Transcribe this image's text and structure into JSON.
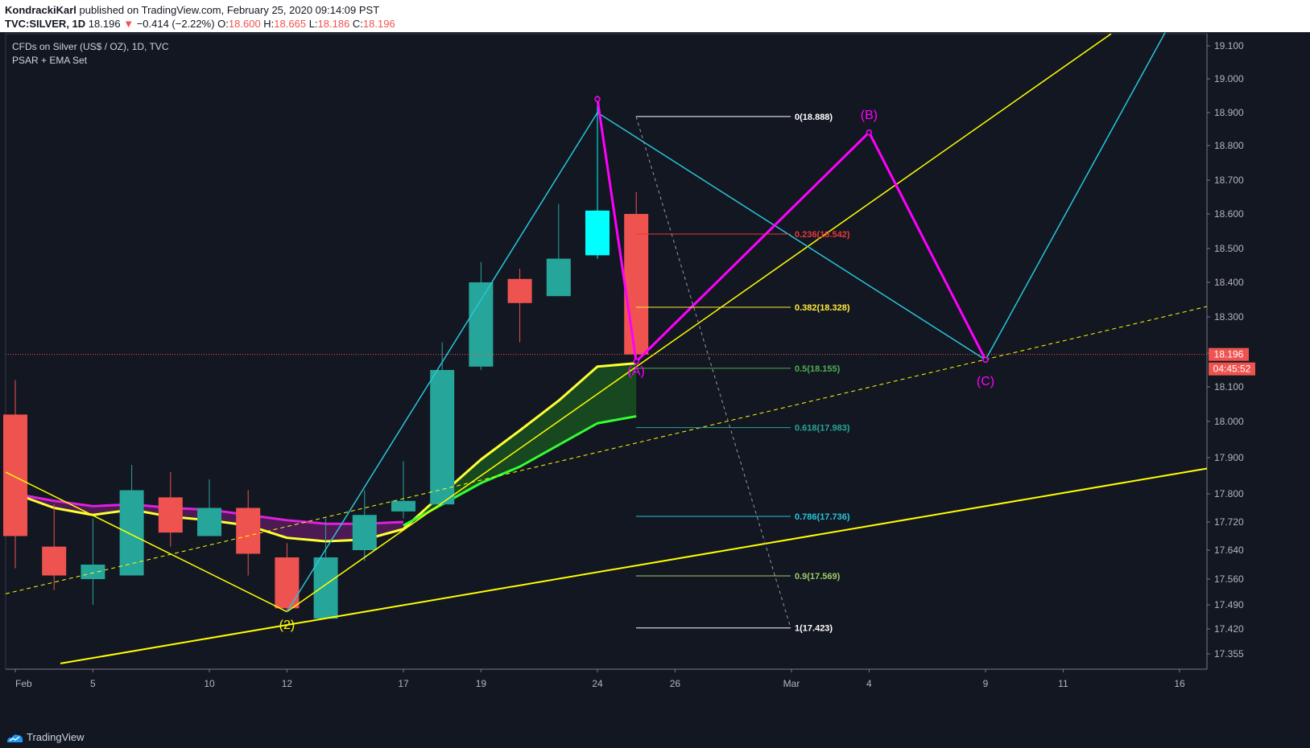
{
  "header": {
    "author": "KondrackiKarl",
    "published_text": "published on TradingView.com, February 25, 2020 09:14:09 PST",
    "symbol": "TVC:SILVER, 1D",
    "last": "18.196",
    "change": "−0.414 (−2.22%)",
    "o_label": "O:",
    "o_value": "18.600",
    "h_label": "H:",
    "h_value": "18.665",
    "l_label": "L:",
    "l_value": "18.186",
    "c_label": "C:",
    "c_value": "18.196"
  },
  "legend": {
    "title": "CFDs on Silver (US$ / OZ), 1D, TVC",
    "indicator": "PSAR + EMA Set"
  },
  "footer": {
    "brand": "TradingView"
  },
  "colors": {
    "background": "#131722",
    "up_candle": "#26a69a",
    "down_candle": "#ef5350",
    "highlight_candle": "#00ffff",
    "ema_magenta": "#e020e0",
    "ema_yellow": "#ffff33",
    "ema_green": "#33ff33",
    "trend_yellow": "#ffff00",
    "wave_cyan": "#26c6da",
    "abc_magenta": "#ff00ff"
  },
  "chart_data": {
    "type": "candlestick",
    "symbol": "TVC:SILVER",
    "timeframe": "1D",
    "y_ticks": [
      "19.100",
      "19.000",
      "18.900",
      "18.800",
      "18.700",
      "18.600",
      "18.500",
      "18.400",
      "18.300",
      "18.200",
      "18.100",
      "18.000",
      "17.900",
      "17.800",
      "17.720",
      "17.640",
      "17.560",
      "17.490",
      "17.420",
      "17.355"
    ],
    "x_ticks": [
      {
        "label": "Feb",
        "date": "2020-02-03"
      },
      {
        "label": "5",
        "date": "2020-02-05"
      },
      {
        "label": "10",
        "date": "2020-02-10"
      },
      {
        "label": "12",
        "date": "2020-02-12"
      },
      {
        "label": "17",
        "date": "2020-02-17"
      },
      {
        "label": "19",
        "date": "2020-02-19"
      },
      {
        "label": "24",
        "date": "2020-02-24"
      },
      {
        "label": "26",
        "date": "2020-02-26"
      },
      {
        "label": "Mar",
        "date": "2020-03-02"
      },
      {
        "label": "4",
        "date": "2020-03-04"
      },
      {
        "label": "9",
        "date": "2020-03-09"
      },
      {
        "label": "11",
        "date": "2020-03-11"
      },
      {
        "label": "16",
        "date": "2020-03-16"
      }
    ],
    "candles": [
      {
        "date": "2020-02-03",
        "o": 18.02,
        "h": 18.12,
        "l": 17.59,
        "c": 17.68
      },
      {
        "date": "2020-02-04",
        "o": 17.65,
        "h": 17.77,
        "l": 17.53,
        "c": 17.57
      },
      {
        "date": "2020-02-05",
        "o": 17.56,
        "h": 17.73,
        "l": 17.49,
        "c": 17.6
      },
      {
        "date": "2020-02-06",
        "o": 17.57,
        "h": 17.88,
        "l": 17.57,
        "c": 17.81
      },
      {
        "date": "2020-02-07",
        "o": 17.79,
        "h": 17.86,
        "l": 17.65,
        "c": 17.69
      },
      {
        "date": "2020-02-10",
        "o": 17.68,
        "h": 17.84,
        "l": 17.68,
        "c": 17.76
      },
      {
        "date": "2020-02-11",
        "o": 17.76,
        "h": 17.81,
        "l": 17.57,
        "c": 17.63
      },
      {
        "date": "2020-02-12",
        "o": 17.62,
        "h": 17.66,
        "l": 17.47,
        "c": 17.48
      },
      {
        "date": "2020-02-13",
        "o": 17.45,
        "h": 17.73,
        "l": 17.45,
        "c": 17.62
      },
      {
        "date": "2020-02-14",
        "o": 17.64,
        "h": 17.81,
        "l": 17.61,
        "c": 17.74
      },
      {
        "date": "2020-02-17",
        "o": 17.75,
        "h": 17.89,
        "l": 17.73,
        "c": 17.78
      },
      {
        "date": "2020-02-18",
        "o": 17.77,
        "h": 18.23,
        "l": 17.77,
        "c": 18.15
      },
      {
        "date": "2020-02-19",
        "o": 18.16,
        "h": 18.46,
        "l": 18.15,
        "c": 18.4
      },
      {
        "date": "2020-02-20",
        "o": 18.41,
        "h": 18.44,
        "l": 18.23,
        "c": 18.34
      },
      {
        "date": "2020-02-21",
        "o": 18.36,
        "h": 18.63,
        "l": 18.36,
        "c": 18.47
      },
      {
        "date": "2020-02-24",
        "o": 18.48,
        "h": 18.95,
        "l": 18.47,
        "c": 18.61
      },
      {
        "date": "2020-02-25",
        "o": 18.6,
        "h": 18.665,
        "l": 18.186,
        "c": 18.196
      }
    ],
    "last_price": "18.196",
    "countdown": "04:45:52",
    "fibonacci": {
      "levels": [
        {
          "ratio": "0",
          "value": "18.888",
          "label": "0(18.888)",
          "color": "#ffffff"
        },
        {
          "ratio": "0.236",
          "value": "18.542",
          "label": "0.236(18.542)",
          "color": "#e53935"
        },
        {
          "ratio": "0.382",
          "value": "18.328",
          "label": "0.382(18.328)",
          "color": "#ffeb3b"
        },
        {
          "ratio": "0.5",
          "value": "18.155",
          "label": "0.5(18.155)",
          "color": "#4caf50"
        },
        {
          "ratio": "0.618",
          "value": "17.983",
          "label": "0.618(17.983)",
          "color": "#26a69a"
        },
        {
          "ratio": "0.786",
          "value": "17.736",
          "label": "0.786(17.736)",
          "color": "#26c6da"
        },
        {
          "ratio": "0.9",
          "value": "17.569",
          "label": "0.9(17.569)",
          "color": "#9ccc65"
        },
        {
          "ratio": "1",
          "value": "17.423",
          "label": "1(17.423)",
          "color": "#ffffff"
        }
      ]
    },
    "wave_labels": [
      {
        "label": "(2)",
        "date": "2020-02-12",
        "price": 17.42,
        "color": "#ffff00"
      },
      {
        "label": "(A)",
        "date": "2020-02-25",
        "price": 18.135,
        "color": "#ff00ff"
      },
      {
        "label": "(B)",
        "date": "2020-03-04",
        "price": 18.88,
        "color": "#ff00ff"
      },
      {
        "label": "(C)",
        "date": "2020-03-09",
        "price": 18.105,
        "color": "#ff00ff"
      }
    ],
    "ema_series": [
      {
        "color": "#e020e0",
        "points": [
          [
            "2020-02-03",
            17.8
          ],
          [
            "2020-02-04",
            17.78
          ],
          [
            "2020-02-05",
            17.765
          ],
          [
            "2020-02-06",
            17.77
          ],
          [
            "2020-02-07",
            17.76
          ],
          [
            "2020-02-10",
            17.755
          ],
          [
            "2020-02-11",
            17.74
          ],
          [
            "2020-02-12",
            17.725
          ],
          [
            "2020-02-13",
            17.715
          ],
          [
            "2020-02-14",
            17.715
          ],
          [
            "2020-02-17",
            17.72
          ]
        ]
      },
      {
        "color": "#ffff33",
        "points": [
          [
            "2020-02-03",
            17.8
          ],
          [
            "2020-02-04",
            17.76
          ],
          [
            "2020-02-05",
            17.74
          ],
          [
            "2020-02-06",
            17.755
          ],
          [
            "2020-02-07",
            17.735
          ],
          [
            "2020-02-10",
            17.725
          ],
          [
            "2020-02-11",
            17.71
          ],
          [
            "2020-02-12",
            17.675
          ],
          [
            "2020-02-13",
            17.665
          ],
          [
            "2020-02-14",
            17.67
          ],
          [
            "2020-02-17",
            17.7
          ],
          [
            "2020-02-18",
            17.8
          ],
          [
            "2020-02-19",
            17.895
          ],
          [
            "2020-02-20",
            17.975
          ],
          [
            "2020-02-21",
            18.06
          ],
          [
            "2020-02-24",
            18.16
          ],
          [
            "2020-02-25",
            18.17
          ]
        ]
      },
      {
        "color": "#33ff33",
        "points": [
          [
            "2020-02-17",
            17.71
          ],
          [
            "2020-02-18",
            17.77
          ],
          [
            "2020-02-19",
            17.83
          ],
          [
            "2020-02-20",
            17.875
          ],
          [
            "2020-02-21",
            17.935
          ],
          [
            "2020-02-24",
            17.995
          ],
          [
            "2020-02-25",
            18.015
          ]
        ]
      }
    ]
  }
}
